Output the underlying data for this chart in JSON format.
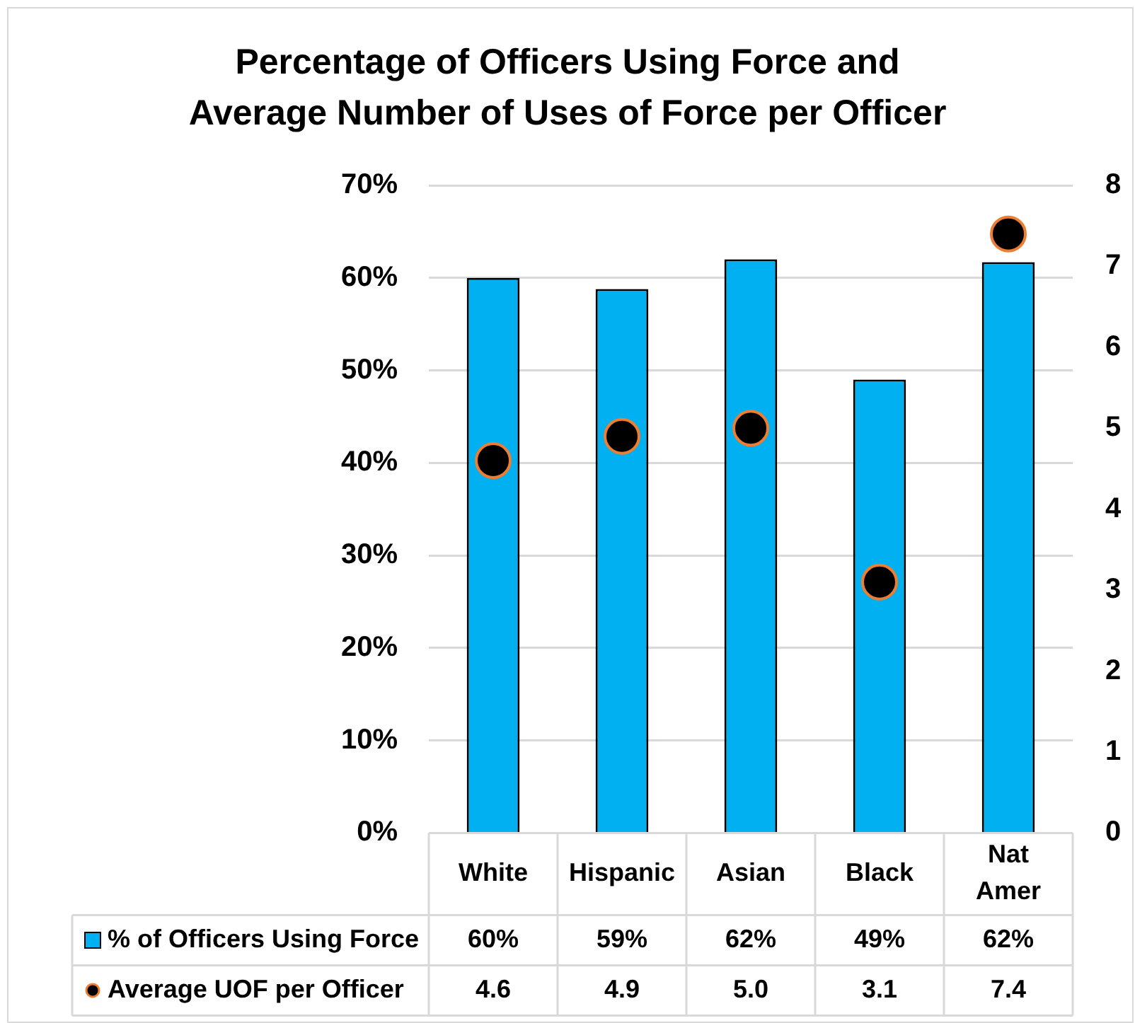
{
  "chart_data": {
    "type": "bar",
    "title": "Percentage of Officers Using Force and\nAverage Number of Uses of Force per Officer",
    "categories": [
      "White",
      "Hispanic",
      "Asian",
      "Black",
      "Nat Amer"
    ],
    "series": [
      {
        "name": "% of Officers Using Force",
        "color": "#00b0f0",
        "values": [
          60,
          58.8,
          62,
          49,
          61.7
        ],
        "value_labels": [
          "60%",
          "59%",
          "62%",
          "49%",
          "62%"
        ]
      },
      {
        "name": "Average UOF per Officer",
        "type": "scatter",
        "axis": "y2",
        "color": "#000000",
        "values": [
          4.6,
          4.9,
          5.0,
          3.1,
          7.4
        ],
        "value_labels": [
          "4.6",
          "4.9",
          "5.0",
          "3.1",
          "7.4"
        ]
      }
    ],
    "ylim": [
      0,
      70
    ],
    "yticks": [
      {
        "value": 0,
        "label": "0%"
      },
      {
        "value": 10,
        "label": "10%"
      },
      {
        "value": 20,
        "label": "20%"
      },
      {
        "value": 30,
        "label": "30%"
      },
      {
        "value": 40,
        "label": "40%"
      },
      {
        "value": 50,
        "label": "50%"
      },
      {
        "value": 60,
        "label": "60%"
      },
      {
        "value": 70,
        "label": "70%"
      }
    ],
    "y2lim": [
      0,
      8
    ],
    "y2ticks": [
      0,
      1,
      2,
      3,
      4,
      5,
      6,
      7,
      8
    ],
    "grid": "y",
    "legend": "bottom",
    "marker": "circle"
  }
}
